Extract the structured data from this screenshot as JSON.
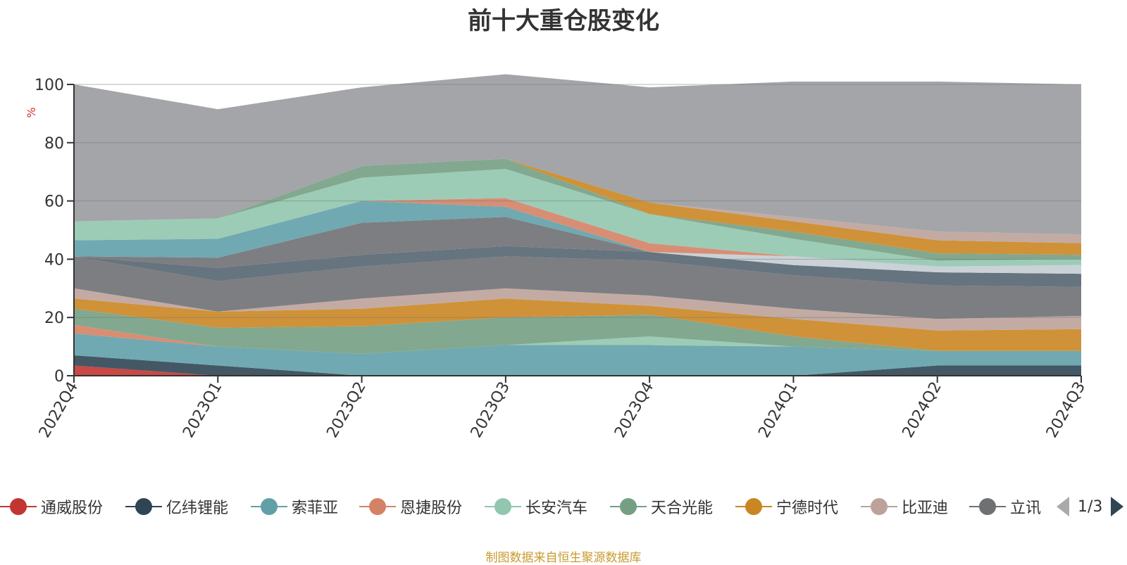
{
  "chart_data": {
    "type": "area",
    "title": "前十大重仓股变化",
    "ylabel": "%",
    "ylim": [
      0,
      100
    ],
    "yticks": [
      0,
      20,
      40,
      60,
      80,
      100
    ],
    "categories": [
      "2022Q4",
      "2023Q1",
      "2023Q2",
      "2023Q3",
      "2023Q4",
      "2024Q1",
      "2024Q2",
      "2024Q3"
    ],
    "bands": [
      {
        "series": "通威股份",
        "color": "#c23531",
        "values": [
          3.5,
          0,
          0,
          0,
          0,
          0,
          0,
          0
        ]
      },
      {
        "series": "亿纬锂能",
        "color": "#2f4554",
        "values": [
          3.5,
          3.5,
          0,
          0,
          0,
          0,
          3.5,
          3.5
        ]
      },
      {
        "series": "索菲亚",
        "color": "#61a0a8",
        "values": [
          7.5,
          6.5,
          7.5,
          10.5,
          10.5,
          10,
          5,
          5
        ]
      },
      {
        "series": "恩捷股份",
        "color": "#d48265",
        "values": [
          3,
          0,
          0,
          0,
          0,
          0,
          0,
          0
        ]
      },
      {
        "series": "长安汽车",
        "color": "#91c7ae",
        "values": [
          0,
          0,
          0,
          0,
          3,
          0,
          0,
          0
        ]
      },
      {
        "series": "天合光能",
        "color": "#749f83",
        "values": [
          5.5,
          6.5,
          9.5,
          9.5,
          7.5,
          3.5,
          0,
          0
        ]
      },
      {
        "series": "宁德时代",
        "color": "#ca8622",
        "values": [
          3.5,
          5.5,
          6,
          6.5,
          3,
          6,
          7,
          7.5
        ]
      },
      {
        "series": "比亚迪",
        "color": "#bda29a",
        "values": [
          3.5,
          0,
          3.5,
          3.5,
          3.5,
          3.5,
          4,
          4.5
        ]
      },
      {
        "series": "立讯精密",
        "color": "#6e7074",
        "values": [
          11,
          10.5,
          11,
          11,
          12,
          11.5,
          11.5,
          10
        ]
      },
      {
        "series": "",
        "color": "#546570",
        "values": [
          0,
          4.5,
          4,
          3.5,
          3,
          3.5,
          4.5,
          4.5
        ]
      },
      {
        "series": "",
        "color": "#c4ccd3",
        "values": [
          0,
          0,
          0,
          0,
          0,
          3,
          2,
          3
        ]
      },
      {
        "series": "",
        "color": "#bda29a",
        "values": [
          0,
          0,
          0,
          0,
          0,
          0,
          0,
          0
        ]
      },
      {
        "series": "",
        "color": "#6e7074",
        "values": [
          0,
          3.5,
          11,
          10,
          0,
          0,
          0,
          0
        ]
      },
      {
        "series": "",
        "color": "#61a0a8",
        "values": [
          5.5,
          6.5,
          7.5,
          3.5,
          0,
          0,
          0,
          0
        ]
      },
      {
        "series": "",
        "color": "#d48265",
        "values": [
          0,
          0,
          0,
          3,
          3,
          0,
          0,
          0
        ]
      },
      {
        "series": "",
        "color": "#91c7ae",
        "values": [
          6.5,
          7,
          8,
          10,
          10,
          6,
          2,
          2
        ]
      },
      {
        "series": "",
        "color": "#749f83",
        "values": [
          0,
          0,
          4,
          3.5,
          0,
          2.5,
          2.5,
          1.5
        ]
      },
      {
        "series": "",
        "color": "#ca8622",
        "values": [
          0,
          0,
          0,
          0,
          4,
          3.5,
          4.5,
          4
        ]
      },
      {
        "series": "",
        "color": "#bda29a",
        "values": [
          0,
          0,
          0,
          0,
          0,
          1.5,
          3,
          3
        ]
      },
      {
        "series": "其他",
        "color": "#9a9b9e",
        "values": [
          47,
          37.5,
          27,
          29,
          39.5,
          46.5,
          51.5,
          51.5
        ]
      }
    ],
    "legend": [
      {
        "name": "通威股份",
        "color": "#c23531"
      },
      {
        "name": "亿纬锂能",
        "color": "#2f4554"
      },
      {
        "name": "索菲亚",
        "color": "#61a0a8"
      },
      {
        "name": "恩捷股份",
        "color": "#d48265"
      },
      {
        "name": "长安汽车",
        "color": "#91c7ae"
      },
      {
        "name": "天合光能",
        "color": "#749f83"
      },
      {
        "name": "宁德时代",
        "color": "#ca8622"
      },
      {
        "name": "比亚迪",
        "color": "#bda29a"
      },
      {
        "name": "立讯精密",
        "color": "#6e7074"
      }
    ],
    "legend_page": "1/3",
    "legend_placement": "bottom",
    "grid": true
  },
  "source_note": "制图数据来自恒生聚源数据库"
}
